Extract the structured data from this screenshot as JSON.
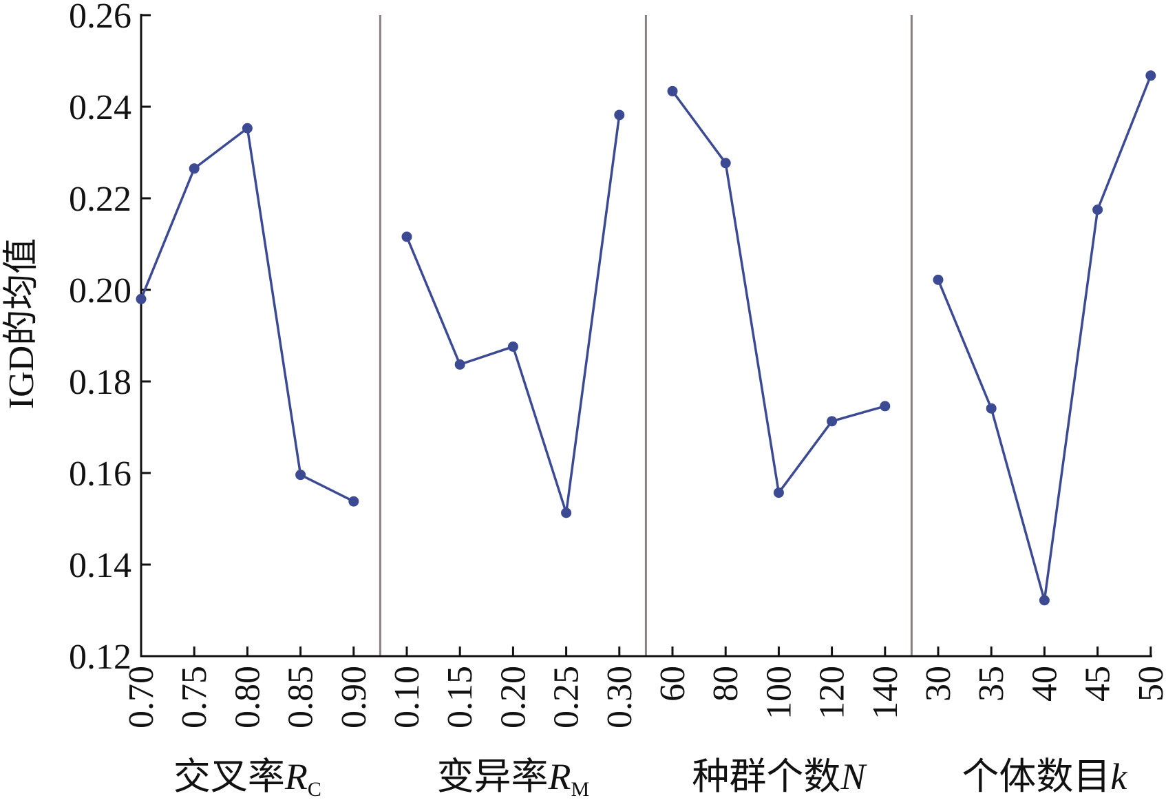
{
  "chart_data": {
    "type": "line",
    "ylabel": "IGD的均值",
    "color": "#3b4a93",
    "separator_color": "#8a8282",
    "ylim": [
      0.12,
      0.26
    ],
    "yticks": [
      {
        "value": 0.12,
        "label": "0.12"
      },
      {
        "value": 0.14,
        "label": "0.14"
      },
      {
        "value": 0.16,
        "label": "0.16"
      },
      {
        "value": 0.18,
        "label": "0.18"
      },
      {
        "value": 0.2,
        "label": "0.20"
      },
      {
        "value": 0.22,
        "label": "0.22"
      },
      {
        "value": 0.24,
        "label": "0.24"
      },
      {
        "value": 0.26,
        "label": "0.26"
      }
    ],
    "groups": [
      {
        "label": "交叉率",
        "symbol": "R",
        "subscript": "C",
        "categories": [
          "0.70",
          "0.75",
          "0.80",
          "0.85",
          "0.90"
        ],
        "values": [
          0.198,
          0.2265,
          0.2353,
          0.1596,
          0.1538
        ]
      },
      {
        "label": "变异率",
        "symbol": "R",
        "subscript": "M",
        "categories": [
          "0.10",
          "0.15",
          "0.20",
          "0.25",
          "0.30"
        ],
        "values": [
          0.2116,
          0.1837,
          0.1876,
          0.1513,
          0.2382
        ]
      },
      {
        "label": "种群个数",
        "symbol": "N",
        "categories": [
          "60",
          "80",
          "100",
          "120",
          "140"
        ],
        "values": [
          0.2434,
          0.2277,
          0.1557,
          0.1713,
          0.1746
        ]
      },
      {
        "label": "个体数目",
        "symbol": "k",
        "categories": [
          "30",
          "35",
          "40",
          "45",
          "50"
        ],
        "values": [
          0.2022,
          0.1741,
          0.1322,
          0.2175,
          0.2468
        ]
      }
    ]
  }
}
